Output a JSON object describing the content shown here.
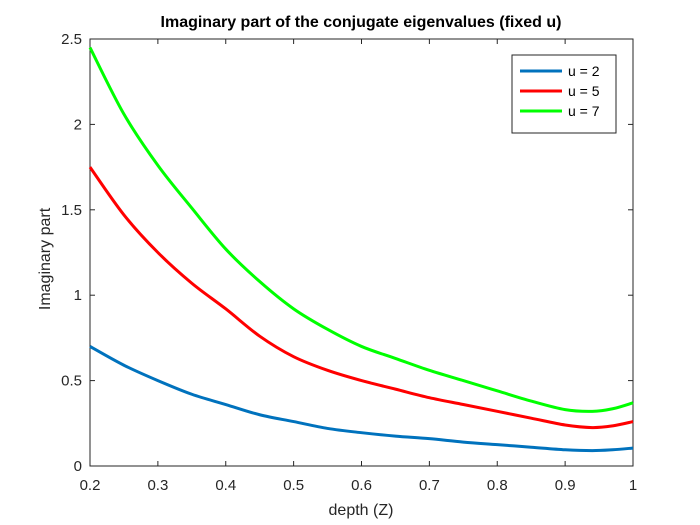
{
  "chart_data": {
    "type": "line",
    "title": "Imaginary part of the conjugate eigenvalues (fixed u)",
    "xlabel": "depth (Z)",
    "ylabel": "Imaginary part",
    "xlim": [
      0.2,
      1
    ],
    "ylim": [
      0,
      2.5
    ],
    "xticks": [
      "0.2",
      "0.3",
      "0.4",
      "0.5",
      "0.6",
      "0.7",
      "0.8",
      "0.9",
      "1"
    ],
    "yticks": [
      "0",
      "0.5",
      "1",
      "1.5",
      "2",
      "2.5"
    ],
    "grid": false,
    "legend_position": "top-right",
    "x": [
      0.2,
      0.25,
      0.3,
      0.35,
      0.4,
      0.45,
      0.5,
      0.55,
      0.6,
      0.65,
      0.7,
      0.75,
      0.8,
      0.85,
      0.9,
      0.94,
      0.97,
      1.0
    ],
    "series": [
      {
        "name": "u = 2",
        "color": "#0072BD",
        "values": [
          0.7,
          0.59,
          0.5,
          0.42,
          0.36,
          0.3,
          0.26,
          0.22,
          0.195,
          0.175,
          0.16,
          0.14,
          0.125,
          0.11,
          0.095,
          0.09,
          0.095,
          0.105
        ]
      },
      {
        "name": "u = 5",
        "color": "#FF0000",
        "values": [
          1.75,
          1.47,
          1.25,
          1.07,
          0.92,
          0.76,
          0.64,
          0.56,
          0.5,
          0.45,
          0.4,
          0.36,
          0.32,
          0.28,
          0.24,
          0.225,
          0.235,
          0.26
        ]
      },
      {
        "name": "u = 7",
        "color": "#00FF00",
        "values": [
          2.45,
          2.06,
          1.76,
          1.51,
          1.27,
          1.08,
          0.92,
          0.8,
          0.7,
          0.63,
          0.56,
          0.5,
          0.44,
          0.38,
          0.33,
          0.32,
          0.335,
          0.37
        ]
      }
    ]
  }
}
